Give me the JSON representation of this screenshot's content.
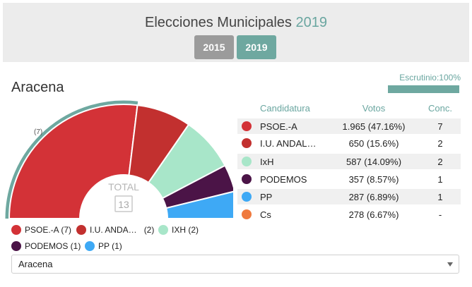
{
  "header": {
    "title_text": "Elecciones Municipales",
    "title_year": "2019",
    "years": [
      "2015",
      "2019"
    ]
  },
  "municipio": "Aracena",
  "escrutinio": {
    "label": "Escrutinio:100%",
    "percent": 100
  },
  "table": {
    "headers": {
      "candidatura": "Candidatura",
      "votos": "Votos",
      "conc": "Conc."
    },
    "rows": [
      {
        "name": "PSOE.-A",
        "votos": "1.965 (47.16%)",
        "conc": "7",
        "color": "#d33237"
      },
      {
        "name": "I.U. ANDAL…",
        "votos": "650 (15.6%)",
        "conc": "2",
        "color": "#c2302f"
      },
      {
        "name": "IxH",
        "votos": "587 (14.09%)",
        "conc": "2",
        "color": "#a8e6c9"
      },
      {
        "name": "PODEMOS",
        "votos": "357 (8.57%)",
        "conc": "1",
        "color": "#4b1447"
      },
      {
        "name": "PP",
        "votos": "287 (6.89%)",
        "conc": "1",
        "color": "#3ea9f5"
      },
      {
        "name": "Cs",
        "votos": "278 (6.67%)",
        "conc": "-",
        "color": "#ef7a3e"
      }
    ]
  },
  "chart_data": {
    "type": "pie",
    "subtype": "parliament-semicircle",
    "categories": [
      "PSOE.-A",
      "I.U. ANDALUCIA",
      "IxH",
      "PODEMOS",
      "PP"
    ],
    "values": [
      7,
      2,
      2,
      1,
      1
    ],
    "colors": [
      "#d33237",
      "#c2302f",
      "#a8e6c9",
      "#4b1447",
      "#3ea9f5"
    ],
    "total_label": "TOTAL",
    "total_value": "13",
    "majority_label": "(7)",
    "majority_arc_color": "#6ea8a0"
  },
  "legend": [
    {
      "label": "PSOE.-A (7)",
      "color": "#d33237"
    },
    {
      "label": "I.U. ANDA…",
      "count": "(2)",
      "color": "#c2302f"
    },
    {
      "label": "IXH (2)",
      "color": "#a8e6c9"
    },
    {
      "label": "PODEMOS (1)",
      "color": "#4b1447"
    },
    {
      "label": "PP (1)",
      "color": "#3ea9f5"
    }
  ],
  "select": {
    "value": "Aracena"
  }
}
